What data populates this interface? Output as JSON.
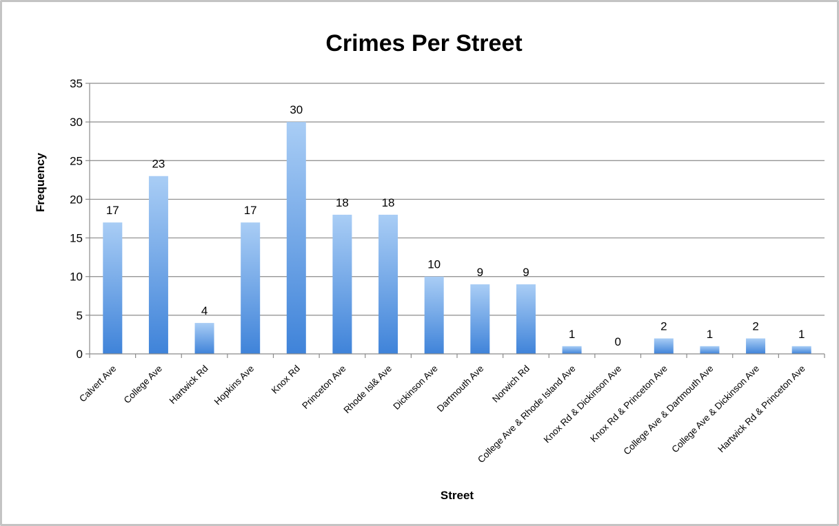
{
  "chart_data": {
    "type": "bar",
    "title": "Crimes Per Street",
    "xlabel": "Street",
    "ylabel": "Frequency",
    "ylim": [
      0,
      35
    ],
    "yticks": [
      0,
      5,
      10,
      15,
      20,
      25,
      30,
      35
    ],
    "grid": true,
    "legend": "none",
    "bar_color_top": "#a9cdf5",
    "bar_color_bottom": "#3f83d9",
    "categories": [
      "Calvert Ave",
      "College Ave",
      "Hartwick Rd",
      "Hopkins Ave",
      "Knox Rd",
      "Princeton Ave",
      "Rhode Isl& Ave",
      "Dickinson Ave",
      "Dartmouth Ave",
      "Norwich Rd",
      "College Ave & Rhode Island Ave",
      "Knox Rd & Dickinson Ave",
      "Knox Rd & Princeton Ave",
      "College Ave & Dartmouth Ave",
      "College Ave & Dickinson Ave",
      "Hartwick Rd & Princeton Ave"
    ],
    "values": [
      17,
      23,
      4,
      17,
      30,
      18,
      18,
      10,
      9,
      9,
      1,
      0,
      2,
      1,
      2,
      1
    ]
  }
}
